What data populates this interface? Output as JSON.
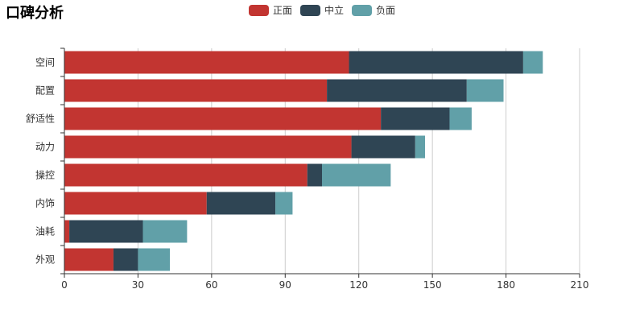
{
  "chart_data": {
    "type": "bar",
    "orientation": "horizontal",
    "stacked": true,
    "title": "口碑分析",
    "categories": [
      "外观",
      "油耗",
      "内饰",
      "操控",
      "动力",
      "舒适性",
      "配置",
      "空间"
    ],
    "series": [
      {
        "name": "正面",
        "color": "#c23531",
        "values": [
          20,
          2,
          58,
          99,
          117,
          129,
          107,
          116
        ]
      },
      {
        "name": "中立",
        "color": "#2f4554",
        "values": [
          10,
          30,
          28,
          6,
          26,
          28,
          57,
          71
        ]
      },
      {
        "name": "负面",
        "color": "#61a0a8",
        "values": [
          13,
          18,
          7,
          28,
          4,
          9,
          15,
          8
        ]
      }
    ],
    "xaxis": {
      "min": 0,
      "max": 210,
      "ticks": [
        0,
        30,
        60,
        90,
        120,
        150,
        180,
        210
      ]
    },
    "grid": "vertical",
    "legend_position": "top-center"
  }
}
